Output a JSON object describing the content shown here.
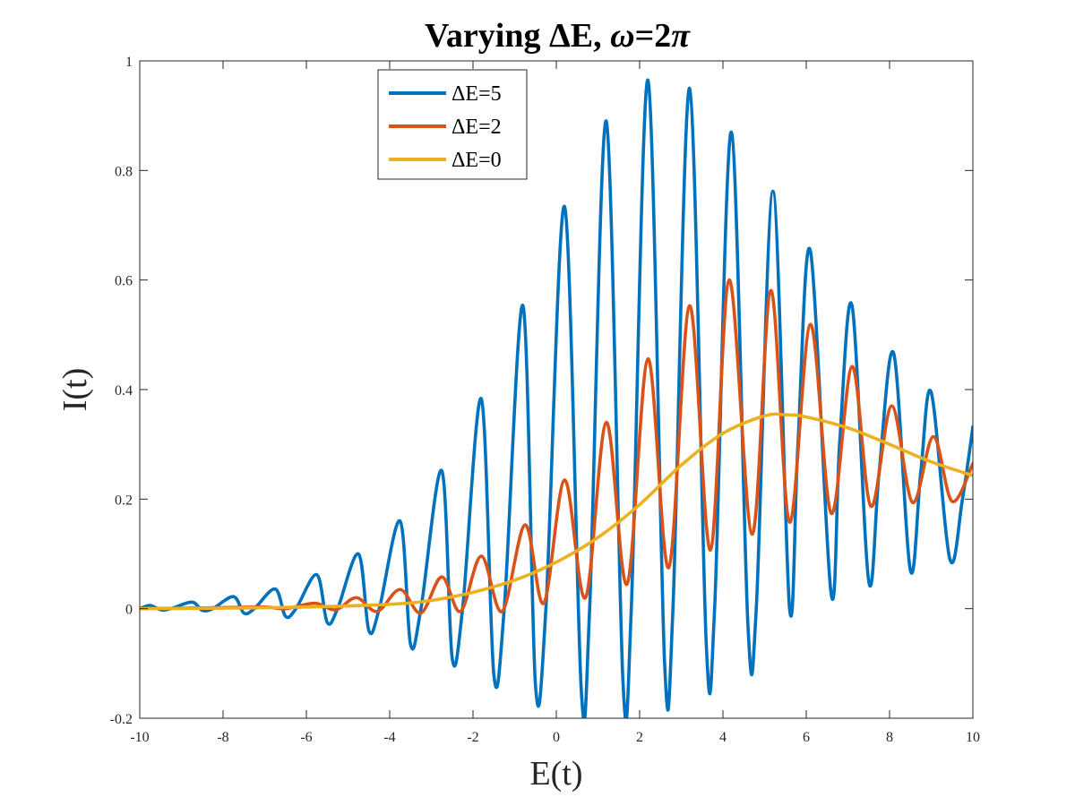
{
  "chart_data": {
    "type": "line",
    "title_prefix": "Varying ΔE, ",
    "title_omega": "ω",
    "title_suffix": "=2",
    "title_pi": "π",
    "xlabel": "E(t)",
    "ylabel": "I(t)",
    "xlim": [
      -10,
      10
    ],
    "ylim": [
      -0.2,
      1
    ],
    "xticks": [
      -10,
      -8,
      -6,
      -4,
      -2,
      0,
      2,
      4,
      6,
      8,
      10
    ],
    "yticks": [
      -0.2,
      0,
      0.2,
      0.4,
      0.6,
      0.8,
      1
    ],
    "xtick_labels": [
      "-10",
      "-8",
      "-6",
      "-4",
      "-2",
      "0",
      "2",
      "4",
      "6",
      "8",
      "10"
    ],
    "ytick_labels": [
      "-0.2",
      "0",
      "0.2",
      "0.4",
      "0.6",
      "0.8",
      "1"
    ],
    "grid": false,
    "legend_position": "top-center",
    "series": [
      {
        "name": "ΔE=5",
        "color": "#0072BD",
        "points": [
          [
            -10,
            0
          ],
          [
            -9.75,
            0.006
          ],
          [
            -9.5,
            -0.002
          ],
          [
            -9.25,
            0
          ],
          [
            -8.75,
            0.012
          ],
          [
            -8.5,
            -0.003
          ],
          [
            -8.25,
            0
          ],
          [
            -7.75,
            0.022
          ],
          [
            -7.5,
            -0.008
          ],
          [
            -7.25,
            0
          ],
          [
            -6.75,
            0.036
          ],
          [
            -6.5,
            -0.014
          ],
          [
            -6.25,
            0
          ],
          [
            -5.75,
            0.062
          ],
          [
            -5.5,
            -0.025
          ],
          [
            -5.25,
            0
          ],
          [
            -4.75,
            0.1
          ],
          [
            -4.5,
            -0.04
          ],
          [
            -4.25,
            0
          ],
          [
            -3.75,
            0.16
          ],
          [
            -3.5,
            -0.065
          ],
          [
            -3.25,
            0
          ],
          [
            -2.75,
            0.252
          ],
          [
            -2.5,
            -0.09
          ],
          [
            -2.25,
            0
          ],
          [
            -1.8,
            0.383
          ],
          [
            -1.5,
            -0.12
          ],
          [
            -1.25,
            0
          ],
          [
            -0.8,
            0.553
          ],
          [
            -0.5,
            -0.14
          ],
          [
            -0.25,
            0
          ],
          [
            0.2,
            0.734
          ],
          [
            0.6,
            -0.15
          ],
          [
            0.8,
            0
          ],
          [
            1.2,
            0.89
          ],
          [
            1.6,
            -0.133
          ],
          [
            1.8,
            0
          ],
          [
            2.2,
            0.965
          ],
          [
            2.6,
            -0.1
          ],
          [
            2.8,
            0
          ],
          [
            3.2,
            0.95
          ],
          [
            3.6,
            -0.065
          ],
          [
            3.8,
            0
          ],
          [
            4.2,
            0.87
          ],
          [
            4.6,
            -0.03
          ],
          [
            4.8,
            0
          ],
          [
            5.2,
            0.762
          ],
          [
            5.6,
            0
          ],
          [
            5.8,
            0.3
          ],
          [
            6.1,
            0.653
          ],
          [
            6.6,
            0.026
          ],
          [
            6.8,
            0.3
          ],
          [
            7.1,
            0.553
          ],
          [
            7.5,
            0.05
          ],
          [
            7.75,
            0.25
          ],
          [
            8.1,
            0.466
          ],
          [
            8.5,
            0.07
          ],
          [
            8.75,
            0.25
          ],
          [
            9.0,
            0.395
          ],
          [
            9.45,
            0.09
          ],
          [
            9.75,
            0.2
          ],
          [
            10,
            0.332
          ]
        ]
      },
      {
        "name": "ΔE=2",
        "color": "#D95319",
        "points": [
          [
            -10,
            0
          ],
          [
            -8,
            0.002
          ],
          [
            -7,
            0.003
          ],
          [
            -6.5,
            0
          ],
          [
            -5.8,
            0.01
          ],
          [
            -5.3,
            -0.002
          ],
          [
            -4.8,
            0.02
          ],
          [
            -4.3,
            -0.005
          ],
          [
            -3.75,
            0.035
          ],
          [
            -3.25,
            -0.008
          ],
          [
            -2.75,
            0.058
          ],
          [
            -2.3,
            -0.005
          ],
          [
            -1.8,
            0.096
          ],
          [
            -1.3,
            -0.005
          ],
          [
            -0.75,
            0.153
          ],
          [
            -0.3,
            0.01
          ],
          [
            0.2,
            0.235
          ],
          [
            0.7,
            0.02
          ],
          [
            1.2,
            0.34
          ],
          [
            1.7,
            0.045
          ],
          [
            2.2,
            0.456
          ],
          [
            2.7,
            0.075
          ],
          [
            3.2,
            0.553
          ],
          [
            3.7,
            0.107
          ],
          [
            4.15,
            0.6
          ],
          [
            4.7,
            0.136
          ],
          [
            5.15,
            0.581
          ],
          [
            5.6,
            0.158
          ],
          [
            6.1,
            0.519
          ],
          [
            6.6,
            0.174
          ],
          [
            7.1,
            0.442
          ],
          [
            7.55,
            0.187
          ],
          [
            8.05,
            0.37
          ],
          [
            8.55,
            0.194
          ],
          [
            9.05,
            0.314
          ],
          [
            9.5,
            0.196
          ],
          [
            10,
            0.265
          ]
        ]
      },
      {
        "name": "ΔE=0",
        "color": "#EDB120",
        "points": [
          [
            -10,
            0
          ],
          [
            -8,
            0.001
          ],
          [
            -6,
            0.003
          ],
          [
            -4,
            0.008
          ],
          [
            -3,
            0.015
          ],
          [
            -2,
            0.03
          ],
          [
            -1,
            0.052
          ],
          [
            0,
            0.085
          ],
          [
            1,
            0.13
          ],
          [
            2,
            0.19
          ],
          [
            3,
            0.262
          ],
          [
            4,
            0.32
          ],
          [
            5,
            0.352
          ],
          [
            5.5,
            0.354
          ],
          [
            6,
            0.35
          ],
          [
            7,
            0.33
          ],
          [
            8,
            0.3
          ],
          [
            9,
            0.268
          ],
          [
            10,
            0.243
          ]
        ]
      }
    ]
  }
}
